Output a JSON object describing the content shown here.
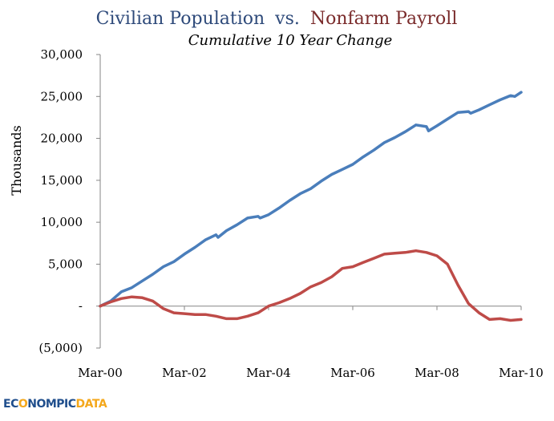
{
  "chart_data": {
    "type": "line",
    "title_part1": "Civilian Population",
    "title_joiner": "vs.",
    "title_part2": "Nonfarm Payroll",
    "subtitle": "Cumulative 10 Year Change",
    "xlabel": "",
    "ylabel": "Thousands",
    "ylim": [
      -5000,
      30000
    ],
    "yticks": [
      -5000,
      0,
      5000,
      10000,
      15000,
      20000,
      25000,
      30000
    ],
    "ytick_labels": [
      "(5,000)",
      "-",
      "5,000",
      "10,000",
      "15,000",
      "20,000",
      "25,000",
      "30,000"
    ],
    "xticks": [
      "Mar-00",
      "Mar-02",
      "Mar-04",
      "Mar-06",
      "Mar-08",
      "Mar-10"
    ],
    "xlim": [
      2000.0,
      2010.0
    ],
    "legend": "none",
    "grid": false,
    "colors": {
      "population": "#4a7ebb",
      "payroll": "#be4b48",
      "title_blue": "#2e4a7a",
      "title_red": "#7a2b2b"
    },
    "series": [
      {
        "name": "Civilian Population",
        "color": "#4a7ebb",
        "x": [
          2000.0,
          2000.25,
          2000.5,
          2000.75,
          2001.0,
          2001.25,
          2001.5,
          2001.75,
          2002.0,
          2002.25,
          2002.5,
          2002.75,
          2002.8,
          2003.0,
          2003.25,
          2003.5,
          2003.75,
          2003.8,
          2004.0,
          2004.25,
          2004.5,
          2004.75,
          2005.0,
          2005.25,
          2005.5,
          2005.75,
          2006.0,
          2006.25,
          2006.5,
          2006.75,
          2007.0,
          2007.25,
          2007.5,
          2007.75,
          2007.8,
          2008.0,
          2008.25,
          2008.5,
          2008.75,
          2008.8,
          2009.0,
          2009.25,
          2009.5,
          2009.75,
          2009.85,
          2010.0
        ],
        "values": [
          0,
          600,
          1700,
          2200,
          3000,
          3800,
          4700,
          5300,
          6200,
          7000,
          7900,
          8500,
          8200,
          9000,
          9700,
          10500,
          10700,
          10500,
          10900,
          11700,
          12600,
          13400,
          14000,
          14900,
          15700,
          16300,
          16900,
          17800,
          18600,
          19500,
          20100,
          20800,
          21600,
          21400,
          20900,
          21500,
          22300,
          23100,
          23200,
          23000,
          23400,
          24000,
          24600,
          25100,
          25000,
          25500
        ]
      },
      {
        "name": "Nonfarm Payroll",
        "color": "#be4b48",
        "x": [
          2000.0,
          2000.25,
          2000.5,
          2000.75,
          2001.0,
          2001.25,
          2001.5,
          2001.75,
          2002.0,
          2002.25,
          2002.5,
          2002.75,
          2003.0,
          2003.25,
          2003.5,
          2003.75,
          2004.0,
          2004.25,
          2004.5,
          2004.75,
          2005.0,
          2005.25,
          2005.5,
          2005.75,
          2006.0,
          2006.25,
          2006.5,
          2006.75,
          2007.0,
          2007.25,
          2007.5,
          2007.75,
          2008.0,
          2008.25,
          2008.5,
          2008.75,
          2009.0,
          2009.25,
          2009.5,
          2009.75,
          2010.0
        ],
        "values": [
          0,
          500,
          900,
          1100,
          1000,
          600,
          -300,
          -800,
          -900,
          -1000,
          -1000,
          -1200,
          -1500,
          -1500,
          -1200,
          -800,
          0,
          400,
          900,
          1500,
          2300,
          2800,
          3500,
          4500,
          4700,
          5200,
          5700,
          6200,
          6300,
          6400,
          6600,
          6400,
          6000,
          5000,
          2500,
          300,
          -800,
          -1600,
          -1500,
          -1700,
          -1600
        ]
      }
    ]
  },
  "logo": {
    "text_ec": "EC",
    "text_o": "O",
    "text_rest": "NOMPIC",
    "text_data": "DATA"
  }
}
